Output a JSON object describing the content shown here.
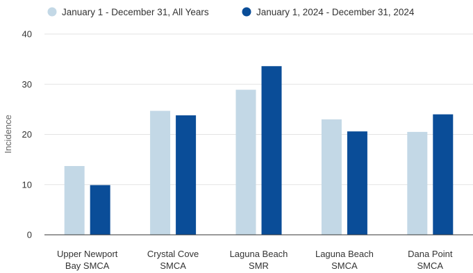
{
  "chart_data": {
    "type": "bar",
    "title": "",
    "xlabel": "",
    "ylabel": "Incidence",
    "ylim": [
      0,
      40
    ],
    "yticks": [
      0,
      10,
      20,
      30,
      40
    ],
    "grid": true,
    "legend_position": "top-left",
    "categories": [
      [
        "Upper Newport",
        "Bay SMCA"
      ],
      [
        "Crystal Cove",
        "SMCA"
      ],
      [
        "Laguna Beach",
        "SMR"
      ],
      [
        "Laguna Beach",
        "SMCA"
      ],
      [
        "Dana Point",
        "SMCA"
      ]
    ],
    "series": [
      {
        "name": "January 1 - December 31, All Years",
        "color": "#c3d8e6",
        "values": [
          13.7,
          24.7,
          28.9,
          23.0,
          20.5
        ]
      },
      {
        "name": "January 1, 2024 - December 31, 2024",
        "color": "#0a4d98",
        "values": [
          9.9,
          23.8,
          33.6,
          20.6,
          24.0
        ]
      }
    ]
  }
}
